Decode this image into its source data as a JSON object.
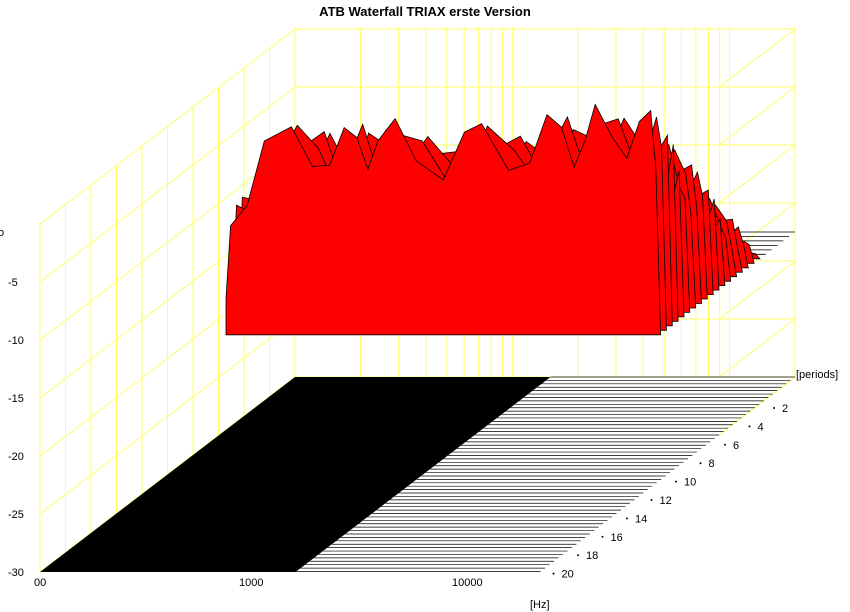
{
  "chart_data": {
    "type": "waterfall",
    "title": "ATB Waterfall  TRIAX  erste Version",
    "xlabel": "[Hz]",
    "ylabel": "",
    "zlabel": "[periods]",
    "y_axis_clipped_label": "o",
    "x_ticks": [
      "00",
      "1000",
      "10000"
    ],
    "x_range_hz": [
      100,
      20000
    ],
    "y_ticks": [
      -5,
      -10,
      -15,
      -20,
      -25,
      -30
    ],
    "y_range": [
      -30,
      0
    ],
    "z_ticks": [
      2,
      4,
      6,
      8,
      10,
      12,
      14,
      16,
      18,
      20
    ],
    "z_range": [
      0,
      20
    ],
    "grid": true,
    "colors": {
      "surface": "#ff0000",
      "grid": "#ffff66",
      "floor": "#000000"
    },
    "front_slice": {
      "freq_hz": [
        200,
        210,
        250,
        300,
        400,
        500,
        600,
        700,
        800,
        900,
        1000,
        1200,
        1500,
        2000,
        2500,
        3000,
        4000,
        5000,
        6000,
        7000,
        8000,
        9000,
        10000,
        12000,
        14000,
        16000,
        18000,
        19000,
        20000
      ],
      "level_db": [
        -17,
        -7,
        -4,
        -2.5,
        -1.5,
        -0.8,
        -1.5,
        -2.2,
        -1.2,
        -0.5,
        -0.8,
        -1.6,
        -1.8,
        -1.6,
        -1.4,
        -1.5,
        -1.4,
        -1.0,
        -0.9,
        -0.7,
        -0.4,
        -0.3,
        -0.4,
        -0.2,
        0.4,
        -0.1,
        -0.6,
        -1.5,
        -17
      ]
    },
    "decay_per_slice_db": 0.95
  }
}
